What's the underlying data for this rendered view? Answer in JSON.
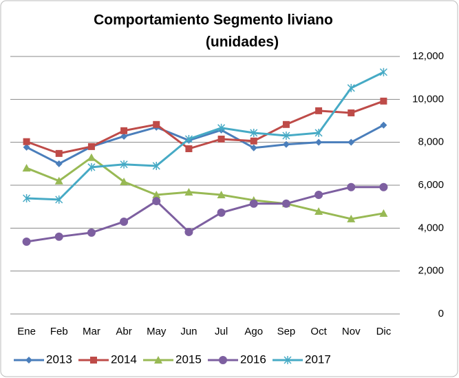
{
  "chart_data": {
    "type": "line",
    "title": [
      "Comportamiento Segmento liviano",
      "(unidades)"
    ],
    "categories": [
      "Ene",
      "Feb",
      "Mar",
      "Abr",
      "May",
      "Jun",
      "Jul",
      "Ago",
      "Sep",
      "Oct",
      "Nov",
      "Dic"
    ],
    "series": [
      {
        "name": "2013",
        "color": "#4a7ebb",
        "marker": "diamond",
        "values": [
          7770,
          7000,
          7800,
          8280,
          8700,
          8090,
          8570,
          7740,
          7900,
          8000,
          8000,
          8800
        ]
      },
      {
        "name": "2014",
        "color": "#be4b48",
        "marker": "square",
        "values": [
          8030,
          7480,
          7800,
          8540,
          8830,
          7700,
          8150,
          8060,
          8830,
          9470,
          9370,
          9920
        ]
      },
      {
        "name": "2015",
        "color": "#98b954",
        "marker": "triangle",
        "values": [
          6800,
          6200,
          7290,
          6160,
          5550,
          5680,
          5550,
          5300,
          5140,
          4780,
          4430,
          4690
        ]
      },
      {
        "name": "2016",
        "color": "#7d5fa0",
        "marker": "circle",
        "values": [
          3370,
          3600,
          3790,
          4300,
          5260,
          3820,
          4720,
          5140,
          5140,
          5550,
          5910,
          5910
        ]
      },
      {
        "name": "2017",
        "color": "#46aac5",
        "marker": "star",
        "values": [
          5390,
          5330,
          6840,
          6970,
          6900,
          8150,
          8670,
          8440,
          8310,
          8440,
          10530,
          11270
        ]
      }
    ],
    "ylim": [
      0,
      12000
    ],
    "yticks": [
      0,
      {
        "value": 2000,
        "label": "2,000"
      },
      {
        "value": 4000,
        "label": "4,000"
      },
      {
        "value": 6000,
        "label": "6,000"
      },
      {
        "value": 8000,
        "label": "8,000"
      },
      {
        "value": 10000,
        "label": "10,000"
      },
      {
        "value": 12000,
        "label": "12,000"
      }
    ],
    "grid": true,
    "legend": "bottom"
  }
}
